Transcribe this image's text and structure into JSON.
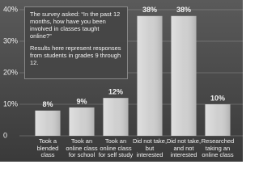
{
  "chart_data": {
    "type": "bar",
    "annotations": [
      "The survey asked: “In the past 12 months, how have you been involved in classes taught online?”",
      "Results here represent responses from students in grades 9 through 12."
    ],
    "categories": [
      "Took a blended class",
      "Took an online class for school",
      "Took an online class for self study",
      "Did not take, but interested",
      "Did not take, and not interested",
      "Researched taking an online class"
    ],
    "values": [
      8,
      9,
      12,
      38,
      38,
      10
    ],
    "value_labels": [
      "8%",
      "9%",
      "12%",
      "38%",
      "38%",
      "10%"
    ],
    "color": "#cfcfcf",
    "ylim": [
      0,
      40
    ],
    "yticks": [
      0,
      {
        "value": 10,
        "label": "10%"
      },
      {
        "value": 20,
        "label": "20%"
      },
      {
        "value": 30,
        "label": "30%"
      },
      {
        "value": 40,
        "label": "40%"
      }
    ],
    "grid": true
  }
}
